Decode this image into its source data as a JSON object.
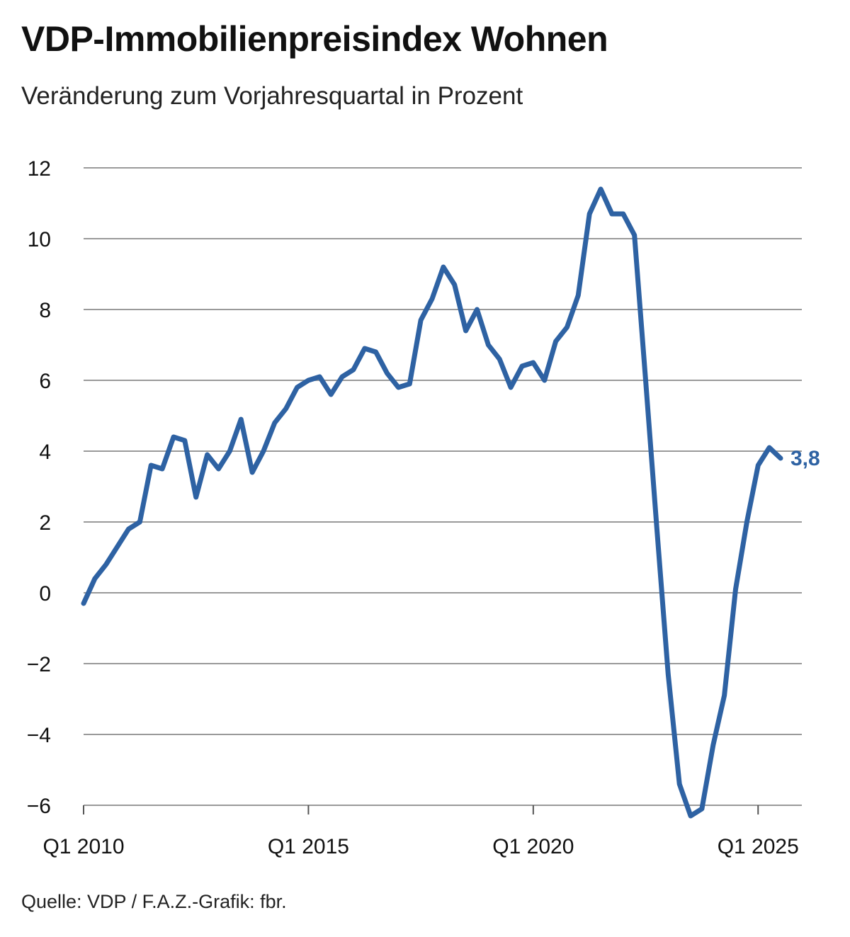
{
  "title": "VDP-Immobilienpreisindex Wohnen",
  "subtitle": "Veränderung zum Vorjahresquartal in Prozent",
  "source": "Quelle: VDP / F.A.Z.-Grafik: fbr.",
  "colors": {
    "line": "#2e62a3",
    "grid": "#9a9a9a",
    "axis": "#555555"
  },
  "chart_data": {
    "type": "line",
    "title": "VDP-Immobilienpreisindex Wohnen",
    "subtitle": "Veränderung zum Vorjahresquartal in Prozent",
    "xlabel": "",
    "ylabel": "",
    "ylim": [
      -6,
      12
    ],
    "yticks": [
      12,
      10,
      8,
      6,
      4,
      2,
      0,
      -2,
      -4,
      -6
    ],
    "ytick_labels": [
      "12",
      "10",
      "8",
      "6",
      "4",
      "2",
      "0",
      "−2",
      "−4",
      "−6"
    ],
    "xticks": [
      {
        "index": 0,
        "label": "Q1 2010"
      },
      {
        "index": 20,
        "label": "Q1 2015"
      },
      {
        "index": 40,
        "label": "Q1 2020"
      },
      {
        "index": 60,
        "label": "Q1 2025"
      }
    ],
    "grid": true,
    "series": [
      {
        "name": "VDP-Immobilienpreisindex Wohnen",
        "start": "Q1 2010",
        "values": [
          -0.3,
          0.4,
          0.8,
          1.3,
          1.8,
          2.0,
          3.6,
          3.5,
          4.4,
          4.3,
          2.7,
          3.9,
          3.5,
          4.0,
          4.9,
          3.4,
          4.0,
          4.8,
          5.2,
          5.8,
          6.0,
          6.1,
          5.6,
          6.1,
          6.3,
          6.9,
          6.8,
          6.2,
          5.8,
          5.9,
          7.7,
          8.3,
          9.2,
          8.7,
          7.4,
          8.0,
          7.0,
          6.6,
          5.8,
          6.4,
          6.5,
          6.0,
          7.1,
          7.5,
          8.4,
          10.7,
          11.4,
          10.7,
          10.7,
          10.1,
          6.0,
          1.8,
          -2.3,
          -5.4,
          -6.3,
          -6.1,
          -4.3,
          -2.9,
          0.1,
          2.0,
          3.6,
          4.1,
          3.8
        ]
      }
    ],
    "end_label": "3,8"
  }
}
